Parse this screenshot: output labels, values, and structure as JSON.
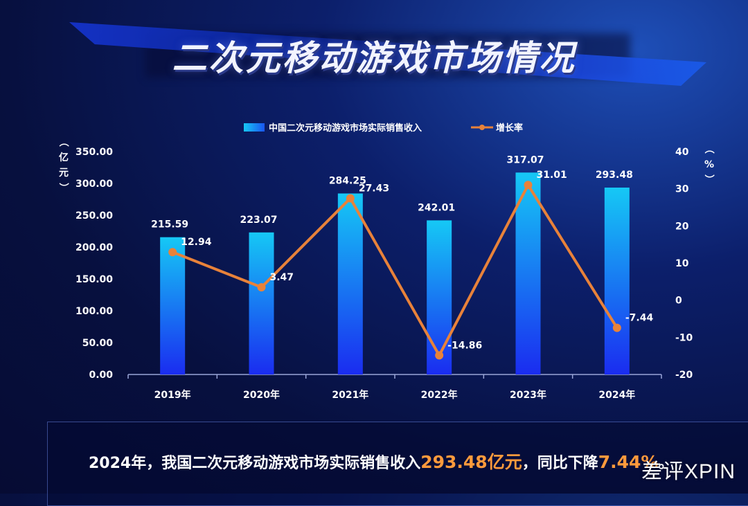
{
  "title": "二次元移动游戏市场情况",
  "footer": {
    "prefix": "2024年，我国二次元移动游戏市场实际销售收入",
    "highlight_revenue": "293.48亿元",
    "middle": "，同比下降",
    "highlight_rate": "7.44%",
    "suffix": "。"
  },
  "watermark": "差评XPIN",
  "colors": {
    "bar_top": "#16c8f5",
    "bar_bottom": "#1a2cf0",
    "line": "#e8823a",
    "highlight": "#ff9a3c"
  },
  "chart_data": {
    "type": "bar",
    "categories": [
      "2019年",
      "2020年",
      "2021年",
      "2022年",
      "2023年",
      "2024年"
    ],
    "series": [
      {
        "name": "中国二次元移动游戏市场实际销售收入",
        "type": "bar",
        "axis": "left",
        "values": [
          215.59,
          223.07,
          284.25,
          242.01,
          317.07,
          293.48
        ]
      },
      {
        "name": "增长率",
        "type": "line",
        "axis": "right",
        "values": [
          12.94,
          3.47,
          27.43,
          -14.86,
          31.01,
          -7.44
        ]
      }
    ],
    "ylabel_left": "（亿元）",
    "ylabel_right": "（%）",
    "ylim_left": [
      0,
      350
    ],
    "ylim_right": [
      -20,
      40
    ],
    "yticks_left": [
      "350.00",
      "300.00",
      "250.00",
      "200.00",
      "150.00",
      "100.00",
      "50.00",
      "0.00"
    ],
    "yticks_right": [
      "40",
      "30",
      "20",
      "10",
      "0",
      "-10",
      "-20"
    ],
    "bar_labels": [
      "215.59",
      "223.07",
      "284.25",
      "242.01",
      "317.07",
      "293.48"
    ],
    "line_labels": [
      "12.94",
      "3.47",
      "27.43",
      "-14.86",
      "31.01",
      "-7.44"
    ],
    "legend_position": "top"
  }
}
